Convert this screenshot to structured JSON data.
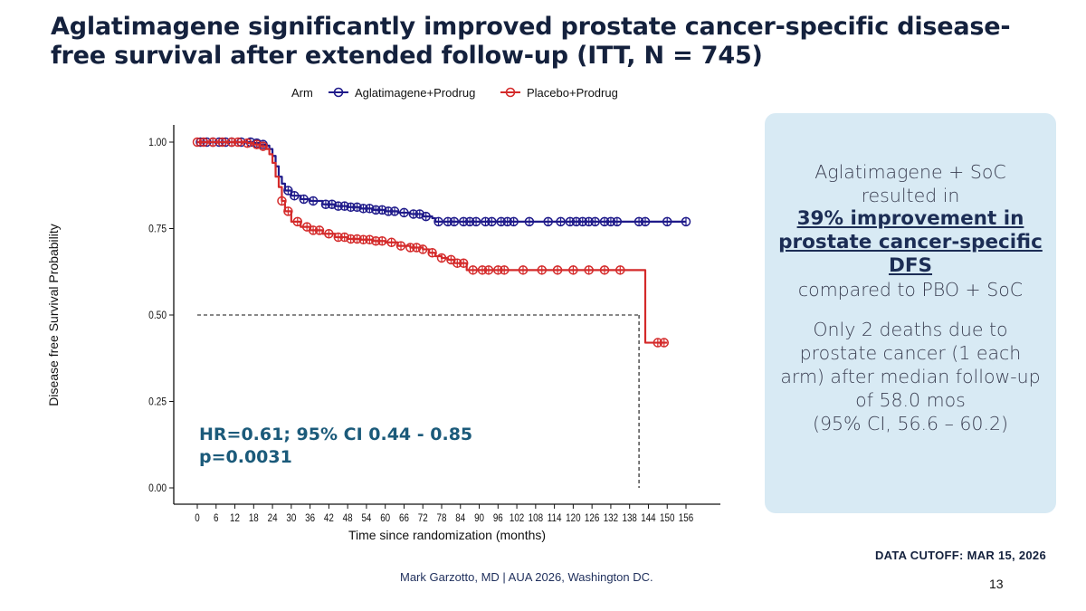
{
  "slide": {
    "title": "Aglatimagene significantly improved prostate cancer-specific disease-free survival after extended follow-up (ITT, N = 745)",
    "data_cutoff": "DATA CUTOFF: MAR 15, 2026",
    "footer": "Mark Garzotto, MD |  AUA 2026, Washington DC.",
    "page_number": "13"
  },
  "info_box": {
    "line1": "Aglatimagene + SoC resulted in",
    "highlight": "39% improvement in prostate cancer-specific DFS",
    "line2": "compared to PBO + SoC",
    "line3": "Only 2 deaths due to prostate cancer (1 each arm) after median follow-up of 58.0 mos",
    "line4": "(95% CI, 56.6 – 60.2)"
  },
  "chart_data": {
    "type": "line",
    "subtype": "kaplan-meier",
    "xlabel": "Time since randomization (months)",
    "ylabel": "Disease free Survival Probability",
    "xlim": [
      0,
      156
    ],
    "ylim": [
      0,
      1
    ],
    "x_ticks": [
      0,
      6,
      12,
      18,
      24,
      30,
      36,
      42,
      48,
      54,
      60,
      66,
      72,
      78,
      84,
      90,
      96,
      102,
      108,
      114,
      120,
      126,
      132,
      138,
      144,
      150,
      156
    ],
    "y_ticks": [
      "0.00",
      "0.25",
      "0.50",
      "0.75",
      "1.00"
    ],
    "legend": {
      "title": "Arm",
      "position": "top",
      "entries": [
        "Aglatimagene+Prodrug",
        "Placebo+Prodrug"
      ]
    },
    "annotation": {
      "line1": "HR=0.61; 95% CI 0.44 - 0.85",
      "line2": "p=0.0031"
    },
    "median_reference": {
      "y": 0.5,
      "x": 141
    },
    "colors": {
      "aglatimagene": "#1f1a8a",
      "placebo": "#d42a2a",
      "annotation": "#1b5a7a"
    },
    "series": [
      {
        "name": "Aglatimagene+Prodrug",
        "color": "#1f1a8a",
        "x": [
          0,
          4,
          8,
          12,
          16,
          18,
          20,
          22,
          23,
          24,
          25,
          26,
          27,
          28,
          30,
          33,
          36,
          40,
          44,
          48,
          52,
          56,
          60,
          64,
          68,
          72,
          75,
          76,
          78,
          84,
          90,
          96,
          102,
          108,
          114,
          120,
          126,
          132,
          138,
          144,
          150,
          156
        ],
        "y": [
          1.0,
          1.0,
          1.0,
          1.0,
          1.0,
          0.997,
          0.993,
          0.99,
          0.98,
          0.96,
          0.93,
          0.9,
          0.88,
          0.86,
          0.845,
          0.835,
          0.83,
          0.82,
          0.815,
          0.812,
          0.808,
          0.804,
          0.8,
          0.796,
          0.792,
          0.785,
          0.78,
          0.77,
          0.77,
          0.77,
          0.77,
          0.77,
          0.77,
          0.77,
          0.77,
          0.77,
          0.77,
          0.77,
          0.77,
          0.77,
          0.77,
          0.77
        ],
        "censor_x": [
          1,
          3,
          5,
          7,
          9,
          11,
          14,
          17,
          19,
          21,
          29,
          31,
          34,
          37,
          41,
          43,
          45,
          47,
          49,
          51,
          53,
          55,
          57,
          59,
          61,
          63,
          66,
          69,
          71,
          73,
          77,
          80,
          82,
          85,
          87,
          89,
          92,
          94,
          97,
          99,
          101,
          106,
          112,
          116,
          119,
          121,
          123,
          125,
          127,
          130,
          132,
          134,
          141,
          143,
          150,
          156
        ]
      },
      {
        "name": "Placebo+Prodrug",
        "color": "#d42a2a",
        "x": [
          0,
          4,
          8,
          12,
          16,
          18,
          20,
          22,
          23,
          24,
          25,
          26,
          27,
          28,
          30,
          33,
          36,
          40,
          44,
          48,
          52,
          56,
          60,
          64,
          68,
          72,
          74,
          76,
          78,
          80,
          82,
          84,
          86,
          90,
          96,
          102,
          108,
          114,
          120,
          126,
          132,
          138,
          141,
          143,
          147,
          150
        ],
        "y": [
          1.0,
          1.0,
          1.0,
          1.0,
          0.997,
          0.993,
          0.988,
          0.98,
          0.965,
          0.94,
          0.9,
          0.87,
          0.83,
          0.8,
          0.77,
          0.755,
          0.745,
          0.735,
          0.725,
          0.72,
          0.718,
          0.714,
          0.71,
          0.7,
          0.695,
          0.69,
          0.68,
          0.67,
          0.665,
          0.66,
          0.65,
          0.65,
          0.63,
          0.63,
          0.63,
          0.63,
          0.63,
          0.63,
          0.63,
          0.63,
          0.63,
          0.63,
          0.63,
          0.42,
          0.42,
          0.42
        ],
        "censor_x": [
          0,
          2,
          5,
          8,
          11,
          13,
          16,
          19,
          21,
          27,
          29,
          32,
          35,
          37,
          39,
          42,
          45,
          47,
          49,
          51,
          53,
          55,
          57,
          59,
          62,
          65,
          68,
          70,
          72,
          75,
          78,
          81,
          83,
          85,
          88,
          91,
          93,
          96,
          98,
          104,
          110,
          115,
          120,
          125,
          130,
          135,
          147,
          149
        ]
      }
    ]
  }
}
